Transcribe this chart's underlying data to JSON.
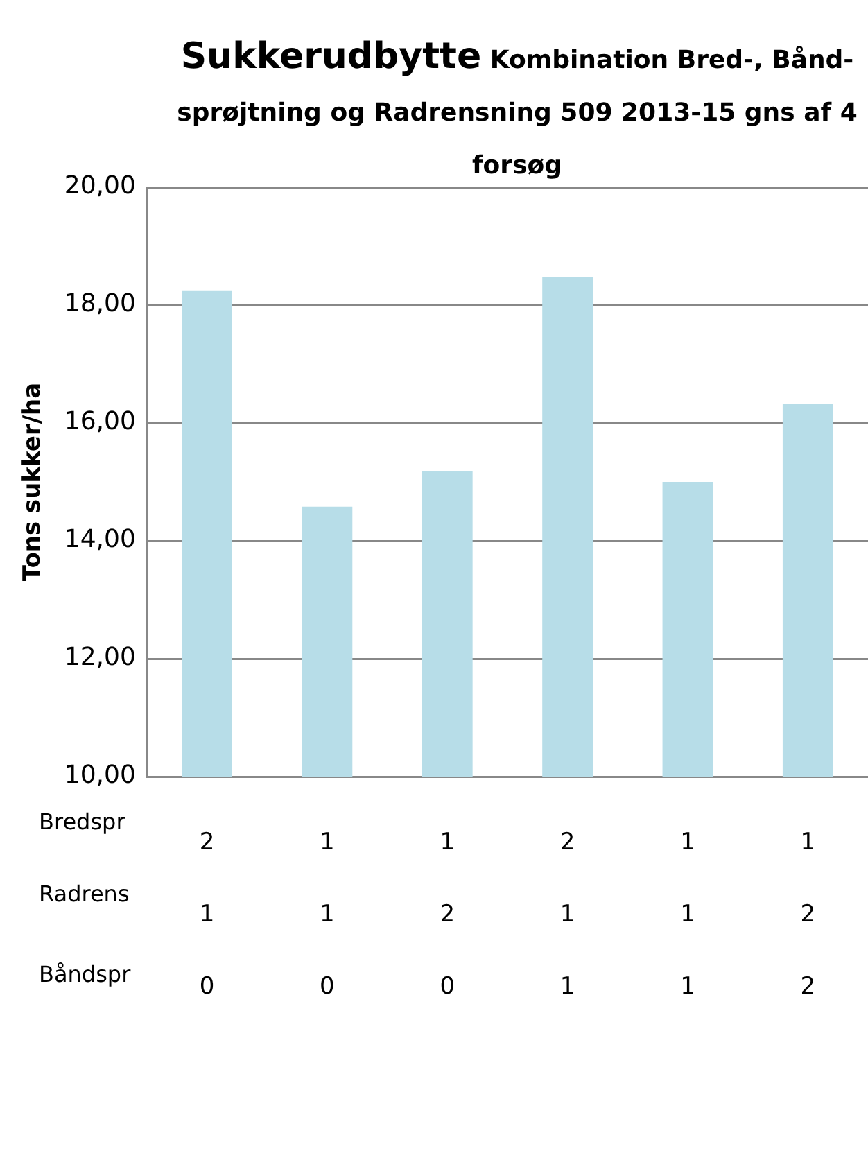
{
  "chart_data": {
    "type": "bar",
    "title": "Sukkerudbytte",
    "subtitle": "Kombination Bred-, Bånd-sprøjtning og Radrensning 509 2013-15 gns af 4 forsøg",
    "ylabel": "Tons sukker/ha",
    "categories": [
      "2\n1\n0",
      "1\n1\n0",
      "1\n2\n0",
      "2\n1\n1",
      "1\n1\n1",
      "1\n2\n2"
    ],
    "values": [
      18.25,
      14.58,
      15.18,
      18.47,
      15.0,
      16.32
    ],
    "color": "#b7dde8",
    "ylim": [
      10,
      20
    ],
    "yticks": [
      {
        "value": 10,
        "label": "10,00"
      },
      {
        "value": 12,
        "label": "12,00"
      },
      {
        "value": 14,
        "label": "14,00"
      },
      {
        "value": 16,
        "label": "16,00"
      },
      {
        "value": 18,
        "label": "18,00"
      },
      {
        "value": 20,
        "label": "20,00"
      }
    ],
    "grid": "y",
    "legend": false,
    "annotations": [
      "Bredspr",
      "Radrens",
      "Båndspr"
    ]
  }
}
